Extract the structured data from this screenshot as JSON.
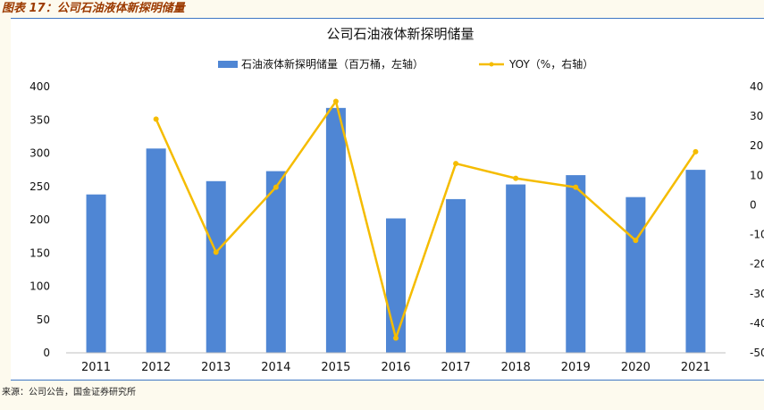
{
  "figure_caption": "图表 17：公司石油液体新探明储量",
  "source_note": "来源：公司公告，国金证券研究所",
  "colors": {
    "bar": "#4f86d4",
    "line": "#f5bc00",
    "accent_border": "#3e77c4",
    "caption": "#9c3a00"
  },
  "chart_data": {
    "type": "bar",
    "title": "公司石油液体新探明储量",
    "legend_position": "top",
    "grid": false,
    "categories": [
      "2011",
      "2012",
      "2013",
      "2014",
      "2015",
      "2016",
      "2017",
      "2018",
      "2019",
      "2020",
      "2021"
    ],
    "series": [
      {
        "name": "石油液体新探明储量（百万桶，左轴）",
        "kind": "bar",
        "axis": "left",
        "values": [
          238,
          307,
          258,
          273,
          368,
          202,
          231,
          253,
          267,
          234,
          275
        ]
      },
      {
        "name": "YOY（%，右轴）",
        "kind": "line",
        "axis": "right",
        "values": [
          null,
          29,
          -16,
          6,
          35,
          -45,
          14,
          9,
          6,
          -12,
          18
        ]
      }
    ],
    "y_left": {
      "min": 0,
      "max": 400,
      "ticks": [
        "0",
        "50",
        "100",
        "150",
        "200",
        "250",
        "300",
        "350",
        "400"
      ]
    },
    "y_right": {
      "min": -50,
      "max": 40,
      "ticks": [
        "-50",
        "-40",
        "-30",
        "-20",
        "-10",
        "0",
        "10",
        "20",
        "30",
        "40"
      ]
    }
  }
}
